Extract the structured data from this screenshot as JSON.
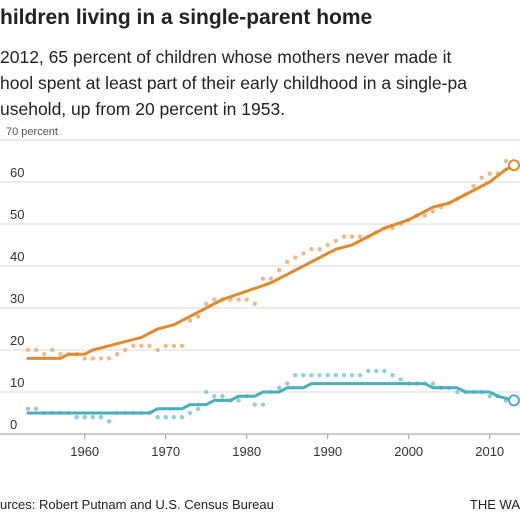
{
  "header": {
    "title": "hildren living in a single-parent home",
    "subtitle_lines": [
      "2012, 65 percent of children whose mothers never made it",
      "hool spent at least part of their early childhood in a single-pa",
      "usehold, up from 20 percent in 1953."
    ]
  },
  "footer": {
    "source": "urces: Robert Putnam and U.S. Census Bureau",
    "credit": "THE WA"
  },
  "colors": {
    "orange": "#e28a2b",
    "orange_light": "#efb98a",
    "teal": "#49aebd",
    "teal_light": "#8fcfd8",
    "grid": "#d9d9d9"
  },
  "chart_data": {
    "type": "line",
    "y_unit_label": "70 percent",
    "y_ticks": [
      0,
      10,
      20,
      30,
      40,
      50,
      60
    ],
    "x_ticks": [
      1960,
      1970,
      1980,
      1990,
      2000,
      2010
    ],
    "xlim": [
      1953,
      2013
    ],
    "ylim": [
      0,
      70
    ],
    "grid": true,
    "series": [
      {
        "color_key": "orange",
        "trend": [
          [
            1953,
            18
          ],
          [
            1957,
            18
          ],
          [
            1958,
            19
          ],
          [
            1960,
            19
          ],
          [
            1961,
            20
          ],
          [
            1963,
            21
          ],
          [
            1965,
            22
          ],
          [
            1967,
            23
          ],
          [
            1969,
            25
          ],
          [
            1971,
            26
          ],
          [
            1973,
            28
          ],
          [
            1975,
            30
          ],
          [
            1977,
            32
          ],
          [
            1980,
            34
          ],
          [
            1983,
            36
          ],
          [
            1986,
            39
          ],
          [
            1988,
            41
          ],
          [
            1991,
            44
          ],
          [
            1993,
            45
          ],
          [
            1997,
            49
          ],
          [
            2000,
            51
          ],
          [
            2003,
            54
          ],
          [
            2005,
            55
          ],
          [
            2008,
            58
          ],
          [
            2010,
            60
          ],
          [
            2012,
            63
          ],
          [
            2013,
            64
          ]
        ],
        "observed": [
          [
            1953,
            20
          ],
          [
            1954,
            20
          ],
          [
            1955,
            19
          ],
          [
            1956,
            20
          ],
          [
            1957,
            19
          ],
          [
            1958,
            19
          ],
          [
            1959,
            19
          ],
          [
            1960,
            18
          ],
          [
            1961,
            18
          ],
          [
            1962,
            18
          ],
          [
            1963,
            18
          ],
          [
            1964,
            19
          ],
          [
            1965,
            20
          ],
          [
            1966,
            21
          ],
          [
            1967,
            21
          ],
          [
            1968,
            21
          ],
          [
            1969,
            20
          ],
          [
            1970,
            21
          ],
          [
            1971,
            21
          ],
          [
            1972,
            21
          ],
          [
            1973,
            27
          ],
          [
            1974,
            28
          ],
          [
            1975,
            31
          ],
          [
            1976,
            32
          ],
          [
            1977,
            32
          ],
          [
            1978,
            32
          ],
          [
            1979,
            32
          ],
          [
            1980,
            32
          ],
          [
            1981,
            31
          ],
          [
            1982,
            37
          ],
          [
            1983,
            37
          ],
          [
            1984,
            39
          ],
          [
            1985,
            41
          ],
          [
            1986,
            42
          ],
          [
            1987,
            43
          ],
          [
            1988,
            44
          ],
          [
            1989,
            44
          ],
          [
            1990,
            45
          ],
          [
            1991,
            46
          ],
          [
            1992,
            47
          ],
          [
            1993,
            47
          ],
          [
            1994,
            47
          ],
          [
            1995,
            47
          ],
          [
            1996,
            48
          ],
          [
            1997,
            49
          ],
          [
            1998,
            49
          ],
          [
            1999,
            50
          ],
          [
            2000,
            51
          ],
          [
            2001,
            52
          ],
          [
            2002,
            52
          ],
          [
            2003,
            53
          ],
          [
            2004,
            54
          ],
          [
            2005,
            55
          ],
          [
            2006,
            56
          ],
          [
            2007,
            57
          ],
          [
            2008,
            59
          ],
          [
            2009,
            61
          ],
          [
            2010,
            62
          ],
          [
            2011,
            62
          ],
          [
            2012,
            65
          ]
        ],
        "end_point": [
          2013,
          64
        ]
      },
      {
        "color_key": "teal",
        "trend": [
          [
            1953,
            5
          ],
          [
            1957,
            5
          ],
          [
            1961,
            5
          ],
          [
            1965,
            5
          ],
          [
            1968,
            5
          ],
          [
            1969,
            6
          ],
          [
            1972,
            6
          ],
          [
            1973,
            7
          ],
          [
            1975,
            7
          ],
          [
            1976,
            8
          ],
          [
            1978,
            8
          ],
          [
            1979,
            9
          ],
          [
            1981,
            9
          ],
          [
            1982,
            10
          ],
          [
            1984,
            10
          ],
          [
            1985,
            11
          ],
          [
            1987,
            11
          ],
          [
            1988,
            12
          ],
          [
            2000,
            12
          ],
          [
            2002,
            12
          ],
          [
            2003,
            11
          ],
          [
            2006,
            11
          ],
          [
            2007,
            10
          ],
          [
            2010,
            10
          ],
          [
            2011,
            9
          ],
          [
            2013,
            8
          ]
        ],
        "observed": [
          [
            1953,
            6
          ],
          [
            1954,
            6
          ],
          [
            1955,
            5
          ],
          [
            1956,
            5
          ],
          [
            1957,
            5
          ],
          [
            1958,
            5
          ],
          [
            1959,
            4
          ],
          [
            1960,
            4
          ],
          [
            1961,
            4
          ],
          [
            1962,
            4
          ],
          [
            1963,
            3
          ],
          [
            1964,
            5
          ],
          [
            1965,
            5
          ],
          [
            1966,
            5
          ],
          [
            1967,
            5
          ],
          [
            1968,
            5
          ],
          [
            1969,
            4
          ],
          [
            1970,
            4
          ],
          [
            1971,
            4
          ],
          [
            1972,
            4
          ],
          [
            1973,
            5
          ],
          [
            1974,
            6
          ],
          [
            1975,
            10
          ],
          [
            1976,
            9
          ],
          [
            1977,
            9
          ],
          [
            1978,
            8
          ],
          [
            1979,
            8
          ],
          [
            1980,
            9
          ],
          [
            1981,
            7
          ],
          [
            1982,
            7
          ],
          [
            1983,
            10
          ],
          [
            1984,
            11
          ],
          [
            1985,
            12
          ],
          [
            1986,
            14
          ],
          [
            1987,
            14
          ],
          [
            1988,
            14
          ],
          [
            1989,
            14
          ],
          [
            1990,
            14
          ],
          [
            1991,
            14
          ],
          [
            1992,
            14
          ],
          [
            1993,
            14
          ],
          [
            1994,
            14
          ],
          [
            1995,
            15
          ],
          [
            1996,
            15
          ],
          [
            1997,
            15
          ],
          [
            1998,
            14
          ],
          [
            1999,
            13
          ],
          [
            2000,
            12
          ],
          [
            2001,
            12
          ],
          [
            2002,
            12
          ],
          [
            2003,
            12
          ],
          [
            2004,
            11
          ],
          [
            2005,
            11
          ],
          [
            2006,
            10
          ],
          [
            2007,
            10
          ],
          [
            2008,
            10
          ],
          [
            2009,
            10
          ],
          [
            2010,
            9
          ],
          [
            2011,
            9
          ],
          [
            2012,
            8
          ]
        ],
        "end_point": [
          2013,
          8
        ]
      }
    ]
  }
}
